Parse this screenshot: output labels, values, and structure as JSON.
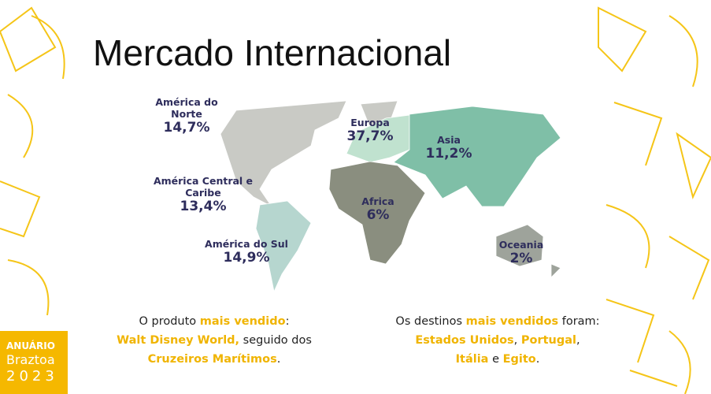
{
  "title": "Mercado Internacional",
  "regions": [
    {
      "name": "América do Norte",
      "share": "14,7%"
    },
    {
      "name": "Europa",
      "share": "37,7%"
    },
    {
      "name": "Asia",
      "share": "11,2%"
    },
    {
      "name": "América Central e Caribe",
      "share": "13,4%"
    },
    {
      "name": "Africa",
      "share": "6%"
    },
    {
      "name": "América do Sul",
      "share": "14,9%"
    },
    {
      "name": "Oceania",
      "share": "2%"
    }
  ],
  "caption_left": {
    "lines": [
      [
        {
          "text": "O produto "
        },
        {
          "text": "mais vendido",
          "highlight": true
        },
        {
          "text": ":"
        }
      ],
      [
        {
          "text": "Walt Disney World,",
          "highlight": true
        },
        {
          "text": " seguido dos"
        }
      ],
      [
        {
          "text": "Cruzeiros Marítimos",
          "highlight": true
        },
        {
          "text": "."
        }
      ]
    ]
  },
  "caption_right": {
    "lines": [
      [
        {
          "text": "Os destinos "
        },
        {
          "text": "mais vendidos",
          "highlight": true
        },
        {
          "text": " foram:"
        }
      ],
      [
        {
          "text": "Estados Unidos",
          "highlight": true
        },
        {
          "text": ", "
        },
        {
          "text": "Portugal",
          "highlight": true
        },
        {
          "text": ","
        }
      ],
      [
        {
          "text": "Itália",
          "highlight": true
        },
        {
          "text": " e "
        },
        {
          "text": "Egito",
          "highlight": true
        },
        {
          "text": "."
        }
      ]
    ]
  },
  "logo": {
    "line1": "ANUÁRIO",
    "line2": "Braztoa",
    "line3": "2023"
  }
}
